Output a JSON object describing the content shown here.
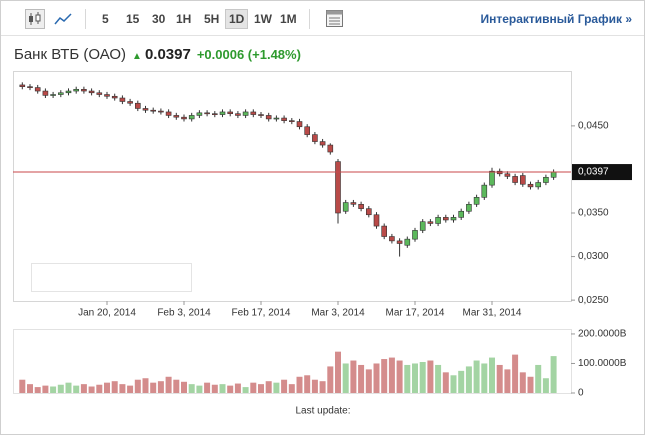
{
  "toolbar": {
    "periods": [
      "5",
      "15",
      "30",
      "1H",
      "5H",
      "1D",
      "1W",
      "1M"
    ],
    "active": "1D",
    "link": "Интерактивный График »"
  },
  "header": {
    "name": "Банк ВТБ (ОАО)",
    "price": "0.0397",
    "change": "+0.0006 (+1.48%)"
  },
  "footer": "Last update:",
  "chart_data": {
    "type": "candlestick",
    "x": [
      "2014-01-03",
      "2014-01-06",
      "2014-01-07",
      "2014-01-08",
      "2014-01-09",
      "2014-01-10",
      "2014-01-13",
      "2014-01-14",
      "2014-01-15",
      "2014-01-16",
      "2014-01-17",
      "2014-01-20",
      "2014-01-21",
      "2014-01-22",
      "2014-01-23",
      "2014-01-24",
      "2014-01-27",
      "2014-01-28",
      "2014-01-29",
      "2014-01-30",
      "2014-01-31",
      "2014-02-03",
      "2014-02-04",
      "2014-02-05",
      "2014-02-06",
      "2014-02-07",
      "2014-02-10",
      "2014-02-11",
      "2014-02-12",
      "2014-02-13",
      "2014-02-14",
      "2014-02-17",
      "2014-02-18",
      "2014-02-19",
      "2014-02-20",
      "2014-02-21",
      "2014-02-24",
      "2014-02-25",
      "2014-02-26",
      "2014-02-27",
      "2014-02-28",
      "2014-03-03",
      "2014-03-04",
      "2014-03-05",
      "2014-03-06",
      "2014-03-07",
      "2014-03-10",
      "2014-03-11",
      "2014-03-12",
      "2014-03-13",
      "2014-03-14",
      "2014-03-17",
      "2014-03-18",
      "2014-03-19",
      "2014-03-20",
      "2014-03-21",
      "2014-03-24",
      "2014-03-25",
      "2014-03-26",
      "2014-03-27",
      "2014-03-28",
      "2014-03-31",
      "2014-04-01",
      "2014-04-02",
      "2014-04-03",
      "2014-04-04",
      "2014-04-07",
      "2014-04-08",
      "2014-04-09",
      "2014-04-10"
    ],
    "open": [
      0.0497,
      0.0495,
      0.0494,
      0.049,
      0.0485,
      0.0486,
      0.0488,
      0.049,
      0.0492,
      0.049,
      0.0488,
      0.0486,
      0.0484,
      0.0482,
      0.0478,
      0.0476,
      0.047,
      0.0468,
      0.0467,
      0.0466,
      0.0462,
      0.046,
      0.0458,
      0.0462,
      0.0465,
      0.0464,
      0.0463,
      0.0466,
      0.0464,
      0.0462,
      0.0466,
      0.0463,
      0.0462,
      0.0458,
      0.0459,
      0.0456,
      0.0455,
      0.0449,
      0.044,
      0.0432,
      0.0428,
      0.0409,
      0.0352,
      0.0362,
      0.036,
      0.0355,
      0.0348,
      0.0335,
      0.0323,
      0.0318,
      0.0313,
      0.032,
      0.033,
      0.034,
      0.0338,
      0.0345,
      0.0342,
      0.0345,
      0.0352,
      0.036,
      0.0368,
      0.0382,
      0.0398,
      0.0395,
      0.0392,
      0.0393,
      0.0383,
      0.038,
      0.0385,
      0.0391
    ],
    "high": [
      0.05,
      0.0498,
      0.0497,
      0.0493,
      0.0489,
      0.0491,
      0.0493,
      0.0495,
      0.0495,
      0.0493,
      0.0491,
      0.0489,
      0.0487,
      0.0485,
      0.0481,
      0.0479,
      0.0473,
      0.0471,
      0.047,
      0.0469,
      0.0465,
      0.0463,
      0.0465,
      0.0468,
      0.0468,
      0.0467,
      0.0469,
      0.0469,
      0.0467,
      0.0469,
      0.0469,
      0.0466,
      0.0465,
      0.0462,
      0.0462,
      0.0459,
      0.0458,
      0.0452,
      0.0443,
      0.0435,
      0.043,
      0.0412,
      0.0365,
      0.0365,
      0.0363,
      0.0358,
      0.0351,
      0.0338,
      0.0326,
      0.0321,
      0.0323,
      0.0333,
      0.0343,
      0.0343,
      0.0348,
      0.0348,
      0.0348,
      0.0355,
      0.0363,
      0.0371,
      0.0385,
      0.0402,
      0.0401,
      0.0398,
      0.0395,
      0.0396,
      0.0386,
      0.0388,
      0.0394,
      0.04
    ],
    "low": [
      0.0492,
      0.0491,
      0.0487,
      0.0482,
      0.0482,
      0.0483,
      0.0485,
      0.0487,
      0.0487,
      0.0485,
      0.0483,
      0.0481,
      0.0479,
      0.0475,
      0.0473,
      0.0467,
      0.0465,
      0.0464,
      0.0463,
      0.0459,
      0.0457,
      0.0455,
      0.0455,
      0.0459,
      0.0461,
      0.046,
      0.046,
      0.0461,
      0.0459,
      0.0459,
      0.046,
      0.0459,
      0.0455,
      0.0455,
      0.0453,
      0.0452,
      0.0446,
      0.0437,
      0.0429,
      0.0425,
      0.0417,
      0.0338,
      0.0349,
      0.0357,
      0.0352,
      0.0345,
      0.0332,
      0.032,
      0.0315,
      0.03,
      0.031,
      0.0317,
      0.0327,
      0.0335,
      0.0335,
      0.0339,
      0.0339,
      0.0342,
      0.0349,
      0.0357,
      0.0365,
      0.0379,
      0.0392,
      0.0389,
      0.0382,
      0.038,
      0.0377,
      0.0377,
      0.0382,
      0.0388
    ],
    "close": [
      0.0495,
      0.0494,
      0.049,
      0.0485,
      0.0486,
      0.0488,
      0.049,
      0.0492,
      0.049,
      0.0488,
      0.0486,
      0.0484,
      0.0482,
      0.0478,
      0.0476,
      0.047,
      0.0468,
      0.0467,
      0.0466,
      0.0462,
      0.046,
      0.0458,
      0.0462,
      0.0465,
      0.0464,
      0.0463,
      0.0466,
      0.0464,
      0.0462,
      0.0466,
      0.0463,
      0.0462,
      0.0458,
      0.0459,
      0.0456,
      0.0455,
      0.0449,
      0.044,
      0.0432,
      0.0428,
      0.042,
      0.035,
      0.0362,
      0.036,
      0.0355,
      0.0348,
      0.0335,
      0.0323,
      0.0318,
      0.0315,
      0.032,
      0.033,
      0.034,
      0.0338,
      0.0345,
      0.0342,
      0.0345,
      0.0352,
      0.036,
      0.0368,
      0.0382,
      0.0398,
      0.0395,
      0.0392,
      0.0385,
      0.0383,
      0.038,
      0.0385,
      0.0391,
      0.0397
    ],
    "volume": [
      45,
      30,
      20,
      25,
      22,
      28,
      35,
      25,
      30,
      22,
      28,
      35,
      40,
      30,
      25,
      45,
      50,
      35,
      40,
      55,
      45,
      38,
      30,
      25,
      35,
      28,
      30,
      25,
      32,
      20,
      35,
      30,
      40,
      35,
      45,
      30,
      55,
      60,
      45,
      40,
      90,
      140,
      100,
      110,
      95,
      80,
      100,
      115,
      120,
      110,
      95,
      100,
      105,
      110,
      95,
      70,
      60,
      75,
      90,
      110,
      100,
      120,
      95,
      80,
      130,
      70,
      55,
      95,
      50,
      125
    ],
    "up_color": "#5cb85c",
    "down_color": "#b94a48",
    "volume_up_color": "#a3d4a3",
    "volume_down_color": "#d48c8c",
    "ylim": [
      0.0249,
      0.0513
    ],
    "yticks": [
      {
        "value": 0.025,
        "label": "0,0250"
      },
      {
        "value": 0.03,
        "label": "0,0300"
      },
      {
        "value": 0.035,
        "label": "0,0350"
      },
      {
        "value": 0.045,
        "label": "0,0450"
      }
    ],
    "last_price": {
      "value": 0.0397,
      "label": "0,0397"
    },
    "last_price_color": "#c9474a",
    "xticks": [
      {
        "value": "2014-01-20",
        "label": "Jan 20, 2014"
      },
      {
        "value": "2014-02-03",
        "label": "Feb 3, 2014"
      },
      {
        "value": "2014-02-17",
        "label": "Feb 17, 2014"
      },
      {
        "value": "2014-03-03",
        "label": "Mar 3, 2014"
      },
      {
        "value": "2014-03-17",
        "label": "Mar 17, 2014"
      },
      {
        "value": "2014-03-31",
        "label": "Mar 31, 2014"
      }
    ],
    "vlim": [
      0,
      210
    ],
    "vticks": [
      0,
      {
        "value": 100,
        "label": "100.0000B"
      },
      {
        "value": 200,
        "label": "200.0000B"
      }
    ]
  }
}
